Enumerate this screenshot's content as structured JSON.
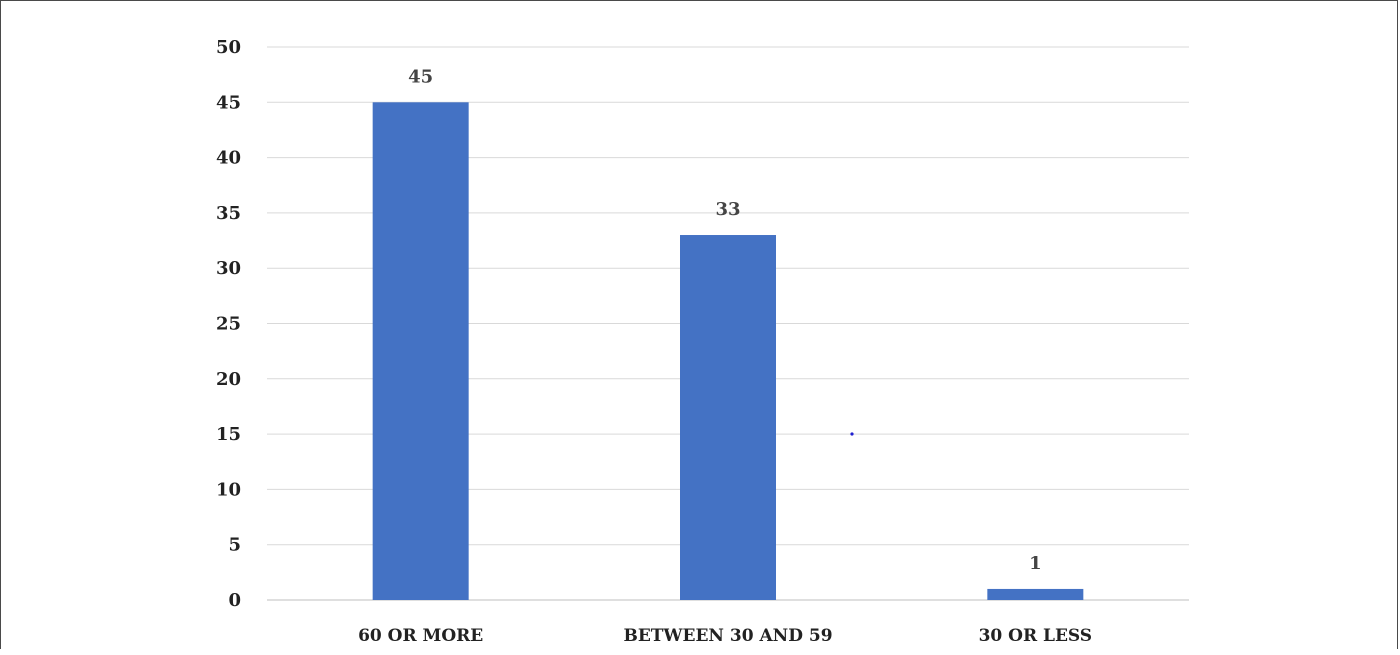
{
  "chart_data": {
    "type": "bar",
    "title": "",
    "xlabel": "",
    "ylabel": "",
    "categories": [
      "60 OR MORE",
      "BETWEEN 30 AND 59",
      "30 OR LESS"
    ],
    "values": [
      45,
      33,
      1
    ],
    "data_labels": [
      "45",
      "33",
      "1"
    ],
    "ylim": [
      0,
      50
    ],
    "yticks": [
      0,
      5,
      10,
      15,
      20,
      25,
      30,
      35,
      40,
      45,
      50
    ],
    "ytick_labels": [
      "0",
      "5",
      "10",
      "15",
      "20",
      "25",
      "30",
      "35",
      "40",
      "45",
      "50"
    ],
    "grid": true,
    "legend": "none",
    "bar_color": "#4472C4",
    "grid_color": "#d9d9d9"
  }
}
